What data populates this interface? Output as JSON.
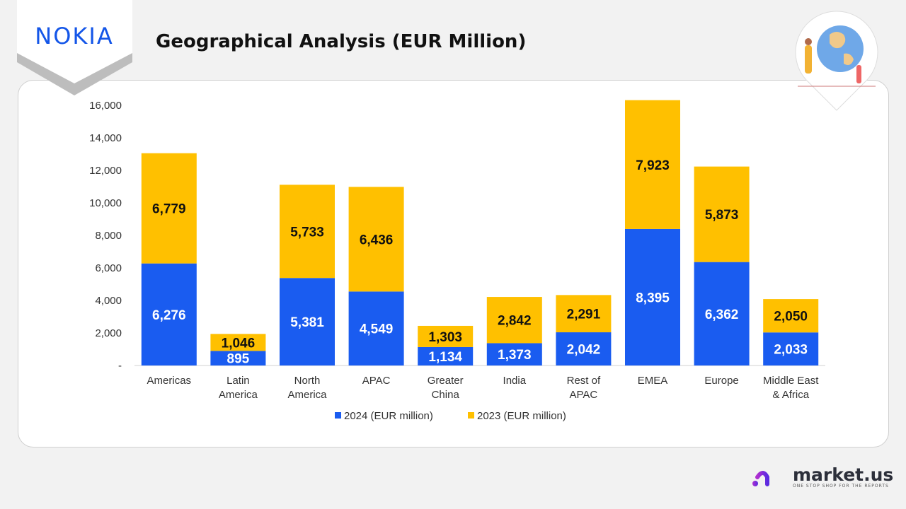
{
  "header": {
    "title": "Geographical Analysis (EUR Million)",
    "brand_logo": "NOKIA"
  },
  "footer": {
    "logo_name": "market.us",
    "logo_tagline": "ONE STOP SHOP FOR THE REPORTS"
  },
  "chart_data": {
    "type": "bar",
    "stacked": true,
    "title": "",
    "categories": [
      [
        "Americas"
      ],
      [
        "Latin",
        "America"
      ],
      [
        "North",
        "America"
      ],
      [
        "APAC"
      ],
      [
        "Greater",
        "China"
      ],
      [
        "India"
      ],
      [
        "Rest of",
        "APAC"
      ],
      [
        "EMEA"
      ],
      [
        "Europe"
      ],
      [
        "Middle East",
        "& Africa"
      ]
    ],
    "series": [
      {
        "name": "2024 (EUR million)",
        "color": "#1a5cf0",
        "values": [
          6276,
          895,
          5381,
          4549,
          1134,
          1373,
          2042,
          8395,
          6362,
          2033
        ],
        "labels": [
          "6,276",
          "895",
          "5,381",
          "4,549",
          "1,134",
          "1,373",
          "2,042",
          "8,395",
          "6,362",
          "2,033"
        ],
        "label_color": "#ffffff"
      },
      {
        "name": "2023 (EUR million)",
        "color": "#ffc000",
        "values": [
          6779,
          1046,
          5733,
          6436,
          1303,
          2842,
          2291,
          7923,
          5873,
          2050
        ],
        "labels": [
          "6,779",
          "1,046",
          "5,733",
          "6,436",
          "1,303",
          "2,842",
          "2,291",
          "7,923",
          "5,873",
          "2,050"
        ],
        "label_color": "#111111"
      }
    ],
    "ylim": [
      0,
      16000
    ],
    "yticks": [
      0,
      2000,
      4000,
      6000,
      8000,
      10000,
      12000,
      14000,
      16000
    ],
    "ytick_labels": [
      "-",
      "2,000",
      "4,000",
      "6,000",
      "8,000",
      "10,000",
      "12,000",
      "14,000",
      "16,000"
    ],
    "grid": false,
    "legend": "bottom"
  }
}
